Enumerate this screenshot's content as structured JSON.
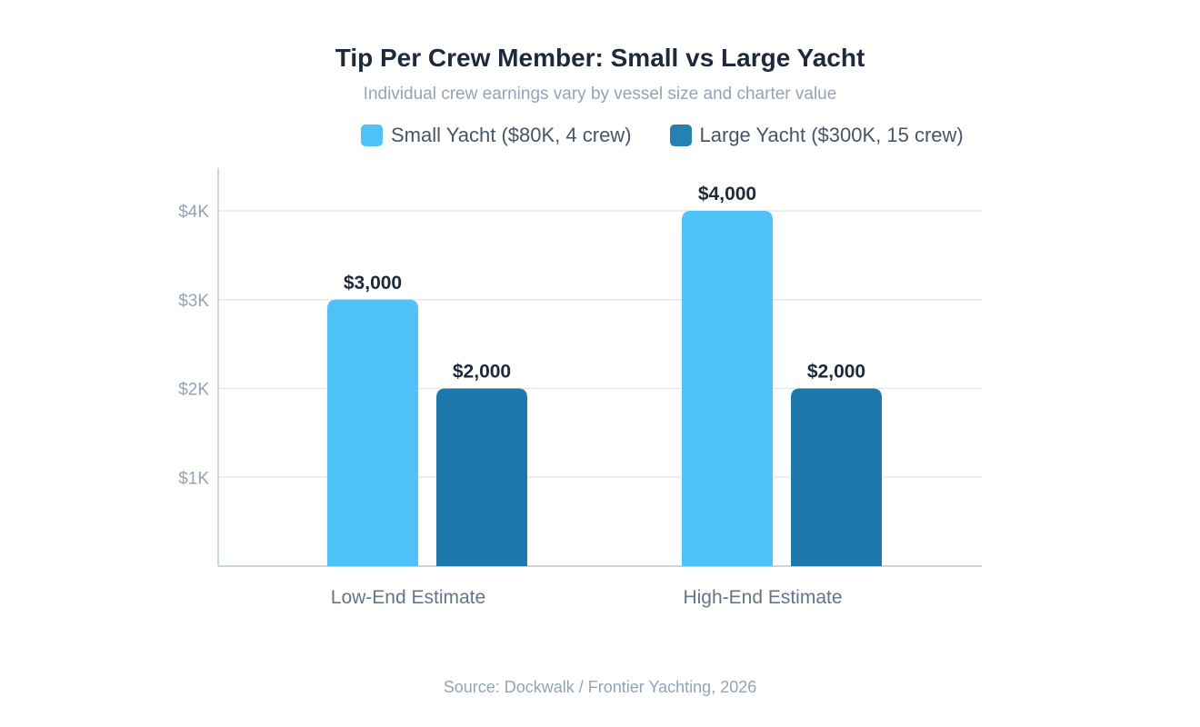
{
  "chart_data": {
    "type": "bar",
    "title": "Tip Per Crew Member: Small vs Large Yacht",
    "subtitle": "Individual crew earnings vary by vessel size and charter value",
    "categories": [
      "Low-End Estimate",
      "High-End Estimate"
    ],
    "series": [
      {
        "name": "Small Yacht ($80K, 4 crew)",
        "values": [
          3000,
          4000
        ],
        "labels": [
          "$3,000",
          "$4,000"
        ],
        "color": "#4fc3f7"
      },
      {
        "name": "Large Yacht ($300K, 15 crew)",
        "values": [
          2000,
          2000
        ],
        "labels": [
          "$2,000",
          "$2,000"
        ],
        "color": "#1e78ab"
      }
    ],
    "yticks": [
      1000,
      2000,
      3000,
      4000
    ],
    "ytick_labels": [
      "$1K",
      "$2K",
      "$3K",
      "$4K"
    ],
    "ylim": [
      0,
      4500
    ],
    "grid": true,
    "legend_position": "top",
    "source": "Source: Dockwalk / Frontier Yachting, 2026"
  }
}
